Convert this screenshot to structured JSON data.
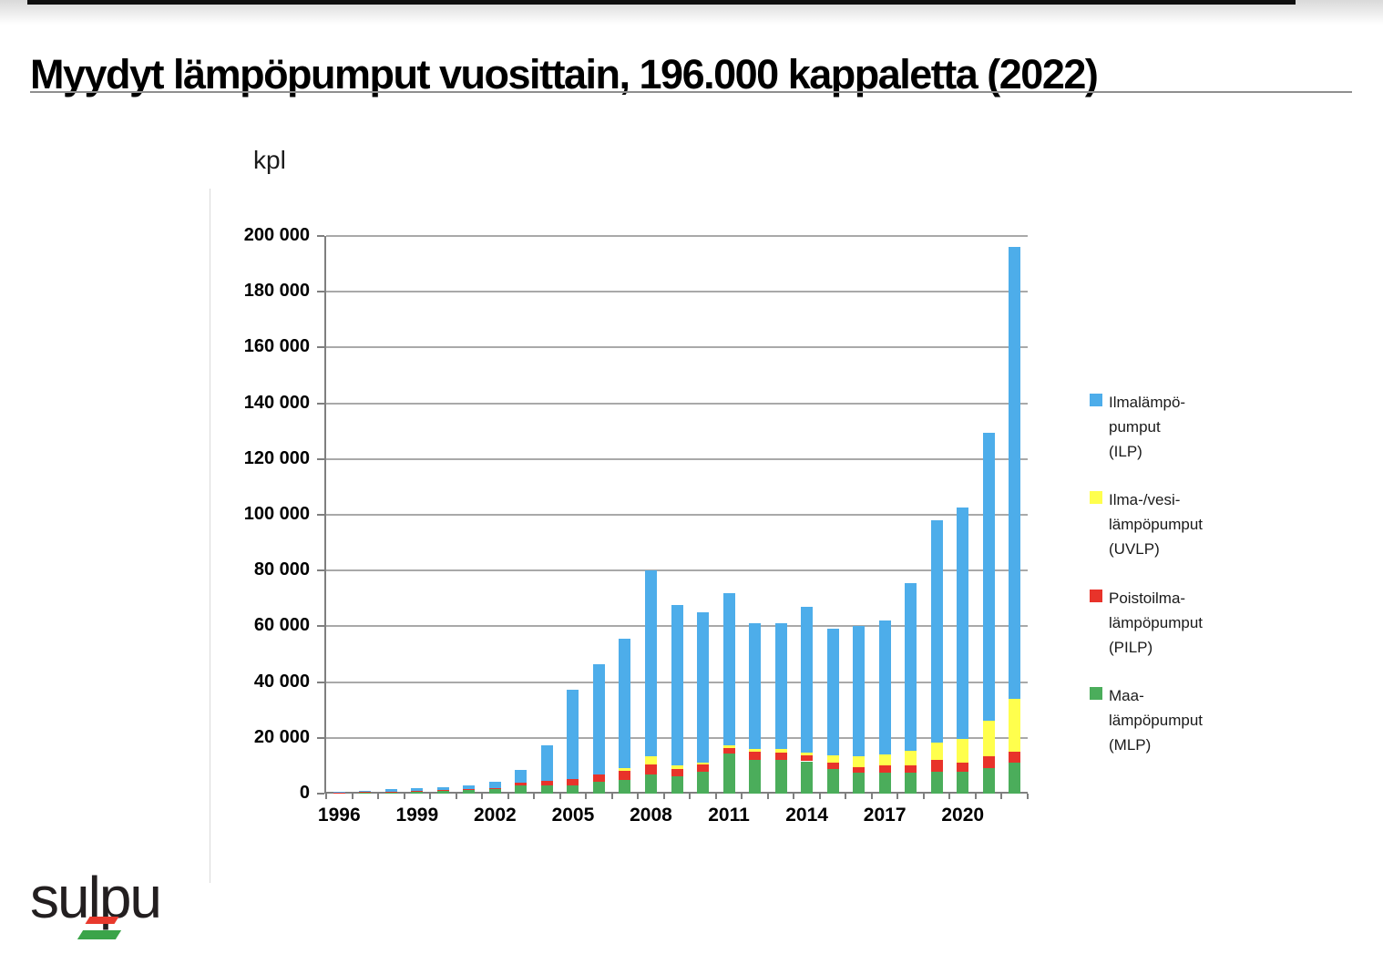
{
  "page": {
    "title": "Myydyt lämpöpumput vuosittain, 196.000 kappaletta (2022)",
    "logo_text": "sulpu",
    "logo_bar_colors": {
      "red": "#e8392d",
      "green": "#3ba449"
    }
  },
  "chart_data": {
    "type": "bar",
    "stacked": true,
    "title": "Myydyt lämpöpumput vuosittain, 196.000 kappaletta (2022)",
    "unit_label": "kpl",
    "ylabel": "kpl",
    "xlabel": "",
    "ylim": [
      0,
      200000
    ],
    "ytick_step": 20000,
    "grid": true,
    "legend_position": "right",
    "categories": [
      1996,
      1997,
      1998,
      1999,
      2000,
      2001,
      2002,
      2003,
      2004,
      2005,
      2006,
      2007,
      2008,
      2009,
      2010,
      2011,
      2012,
      2013,
      2014,
      2015,
      2016,
      2017,
      2018,
      2019,
      2020,
      2021,
      2022
    ],
    "xtick_labels": [
      "1996",
      "1999",
      "2002",
      "2005",
      "2008",
      "2011",
      "2014",
      "2017",
      "2020"
    ],
    "series": [
      {
        "name": "Maa-lämpöpumput (MLP)",
        "color": "#4bad5b",
        "values": [
          300,
          400,
          600,
          800,
          1000,
          1200,
          1500,
          2800,
          3000,
          2900,
          4300,
          5000,
          7000,
          6300,
          7800,
          14400,
          12100,
          12100,
          11600,
          8900,
          7500,
          7600,
          7500,
          8000,
          7700,
          9200,
          11200
        ]
      },
      {
        "name": "Poistoilma-lämpöpumput (PILP)",
        "color": "#e8332a",
        "values": [
          50,
          100,
          150,
          200,
          300,
          300,
          600,
          1000,
          1500,
          2400,
          2700,
          3300,
          3500,
          2600,
          2700,
          2000,
          2800,
          2600,
          2200,
          2200,
          2100,
          2400,
          2500,
          4000,
          3300,
          4200,
          3900
        ]
      },
      {
        "name": "Ilma-/vesi-lämpöpumput (UVLP)",
        "color": "#ffff4d",
        "values": [
          0,
          0,
          0,
          0,
          0,
          0,
          0,
          0,
          0,
          0,
          0,
          900,
          3000,
          1100,
          700,
          900,
          1100,
          1300,
          900,
          2500,
          3700,
          4000,
          5300,
          6300,
          8700,
          12600,
          19000
        ]
      },
      {
        "name": "Ilmalämpö-pumput (ILP)",
        "color": "#4dadea",
        "values": [
          150,
          400,
          750,
          800,
          1000,
          1400,
          2000,
          4700,
          12800,
          31900,
          39500,
          46300,
          66500,
          57500,
          53800,
          54700,
          45000,
          45000,
          52300,
          45400,
          46700,
          48000,
          60200,
          79700,
          82800,
          103500,
          161900
        ]
      }
    ],
    "totals": [
      500,
      900,
      1500,
      1800,
      2300,
      2900,
      4100,
      8500,
      17300,
      37200,
      46500,
      55500,
      80000,
      67500,
      65000,
      72000,
      61000,
      61000,
      67000,
      59000,
      60000,
      62000,
      75500,
      98000,
      102500,
      129500,
      196000
    ],
    "legend": [
      {
        "key": "ILP",
        "color": "#4dadea",
        "label_lines": [
          "Ilmalämpö-",
          "pumput",
          "(ILP)"
        ]
      },
      {
        "key": "UVLP",
        "color": "#ffff4d",
        "label_lines": [
          "Ilma-/vesi-",
          "lämpöpumput",
          "(UVLP)"
        ]
      },
      {
        "key": "PILP",
        "color": "#e8332a",
        "label_lines": [
          "Poistoilma-",
          "lämpöpumput",
          "(PILP)"
        ]
      },
      {
        "key": "MLP",
        "color": "#4bad5b",
        "label_lines": [
          "Maa-",
          "lämpöpumput",
          "(MLP)"
        ]
      }
    ]
  }
}
